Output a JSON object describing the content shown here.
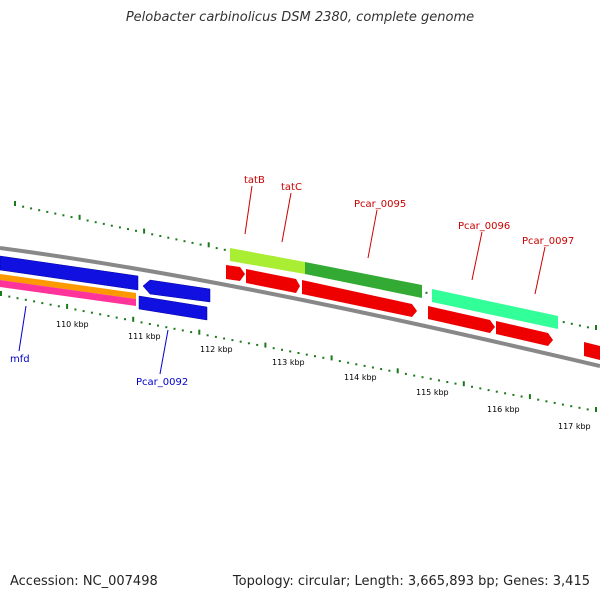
{
  "title": "Pelobacter carbinolicus DSM 2380, complete genome",
  "footer": {
    "accession": "Accession: NC_007498",
    "summary": "Topology: circular; Length: 3,665,893 bp; Genes: 3,415"
  },
  "colors": {
    "backbone": "#888888",
    "tick": "#1a7a1a",
    "label_red": "#cc0000",
    "label_blue": "#0000cc"
  },
  "kbp_labels": [
    "110 kbp",
    "111 kbp",
    "112 kbp",
    "113 kbp",
    "114 kbp",
    "115 kbp",
    "116 kbp",
    "117 kbp"
  ],
  "gene_labels": [
    {
      "id": "tatB",
      "text": "tatB",
      "color": "red"
    },
    {
      "id": "tatC",
      "text": "tatC",
      "color": "red"
    },
    {
      "id": "pcar0095",
      "text": "Pcar_0095",
      "color": "red"
    },
    {
      "id": "pcar0096",
      "text": "Pcar_0096",
      "color": "red"
    },
    {
      "id": "pcar0097",
      "text": "Pcar_0097",
      "color": "red"
    },
    {
      "id": "mfd",
      "text": "mfd",
      "color": "blue"
    },
    {
      "id": "pcar0092",
      "text": "Pcar_0092",
      "color": "blue"
    }
  ]
}
